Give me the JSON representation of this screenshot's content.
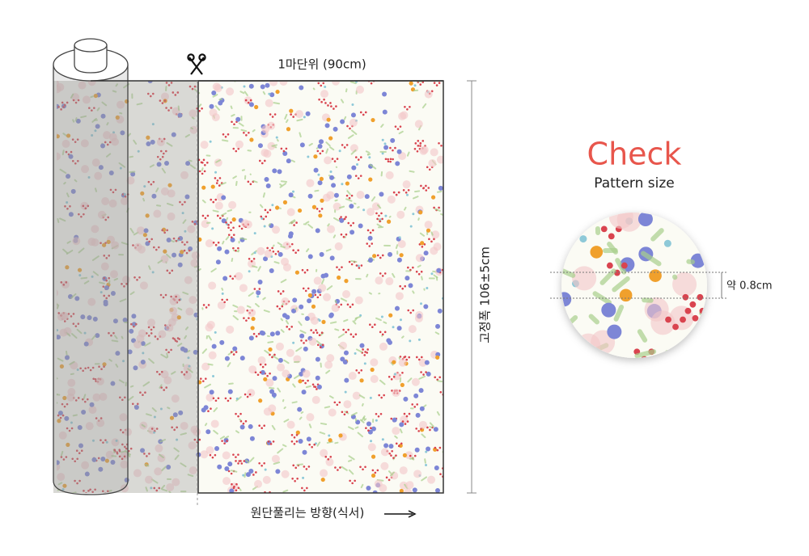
{
  "header": {
    "cut_unit": "1마단위 (90cm)",
    "width": "고정폭 106±5cm",
    "direction": "원단풀리는 방향(식서)"
  },
  "pattern": {
    "title": "Check",
    "subtitle": "Pattern size",
    "size": "약 0.8cm"
  }
}
